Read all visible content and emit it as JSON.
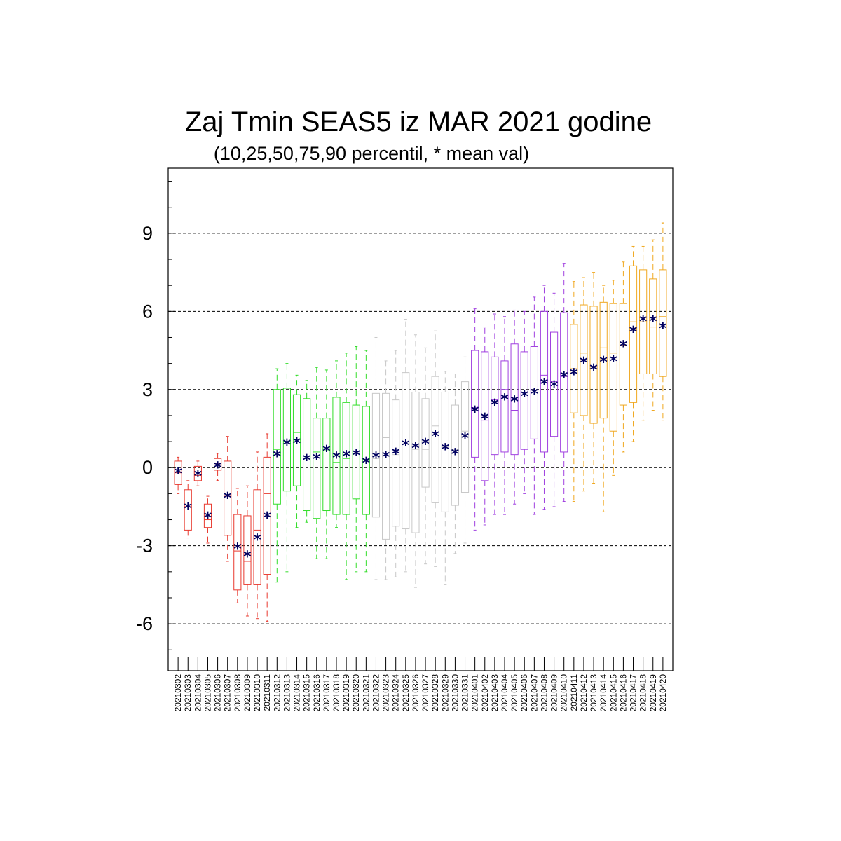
{
  "chart_data": {
    "type": "box",
    "title": "Zaj Tmin SEAS5 iz MAR 2021 godine",
    "subtitle": "(10,25,50,75,90 percentil, * mean val)",
    "xlabel": "",
    "ylabel": "",
    "ylim": [
      -7.8,
      11.5
    ],
    "yticks": [
      -6,
      -3,
      0,
      3,
      6,
      9
    ],
    "grid": "horizontal dashed at major ticks",
    "mean_marker": "*",
    "colors": {
      "march_early": "#e8392e",
      "march_mid": "#33dd2a",
      "march_late": "#c8c8c8",
      "april_early": "#a040e0",
      "april_mid": "#f0a820",
      "mean": "#000060",
      "grid": "#000000"
    },
    "categories": [
      "20210302",
      "20210303",
      "20210304",
      "20210305",
      "20210306",
      "20210307",
      "20210308",
      "20210309",
      "20210310",
      "20210311",
      "20210312",
      "20210313",
      "20210314",
      "20210315",
      "20210316",
      "20210317",
      "20210318",
      "20210319",
      "20210320",
      "20210321",
      "20210322",
      "20210323",
      "20210324",
      "20210325",
      "20210326",
      "20210327",
      "20210328",
      "20210329",
      "20210330",
      "20210331",
      "20210401",
      "20210402",
      "20210403",
      "20210404",
      "20210405",
      "20210406",
      "20210407",
      "20210408",
      "20210409",
      "20210410",
      "20210411",
      "20210412",
      "20210413",
      "20210414",
      "20210415",
      "20210416",
      "20210417",
      "20210418",
      "20210419",
      "20210420"
    ],
    "color_group": [
      "march_early",
      "march_early",
      "march_early",
      "march_early",
      "march_early",
      "march_early",
      "march_early",
      "march_early",
      "march_early",
      "march_early",
      "march_mid",
      "march_mid",
      "march_mid",
      "march_mid",
      "march_mid",
      "march_mid",
      "march_mid",
      "march_mid",
      "march_mid",
      "march_mid",
      "march_late",
      "march_late",
      "march_late",
      "march_late",
      "march_late",
      "march_late",
      "march_late",
      "march_late",
      "march_late",
      "march_late",
      "april_early",
      "april_early",
      "april_early",
      "april_early",
      "april_early",
      "april_early",
      "april_early",
      "april_early",
      "april_early",
      "april_early",
      "april_mid",
      "april_mid",
      "april_mid",
      "april_mid",
      "april_mid",
      "april_mid",
      "april_mid",
      "april_mid",
      "april_mid",
      "april_mid"
    ],
    "p10": [
      -1.0,
      -2.7,
      -0.7,
      -2.9,
      -0.5,
      -3.6,
      -5.2,
      -5.7,
      -5.8,
      -5.9,
      -4.4,
      -4.0,
      -2.3,
      -2.1,
      -3.5,
      -3.5,
      -2.3,
      -4.3,
      -4.0,
      -4.0,
      -4.3,
      -4.3,
      -4.2,
      -4.0,
      -4.6,
      -3.7,
      -3.8,
      -4.5,
      -3.3,
      -2.9,
      -2.4,
      -2.2,
      -1.8,
      -1.8,
      -1.4,
      -1.0,
      -1.8,
      -1.6,
      -1.5,
      -1.3,
      -1.3,
      -0.9,
      -0.6,
      -1.7,
      -0.3,
      0.6,
      1.0,
      1.8,
      2.2,
      1.8
    ],
    "p25": [
      -0.65,
      -2.4,
      -0.5,
      -2.3,
      -0.1,
      -2.6,
      -4.7,
      -4.5,
      -4.5,
      -4.1,
      -1.4,
      -0.9,
      -0.7,
      -1.65,
      -1.95,
      -1.65,
      -1.8,
      -1.8,
      -1.2,
      -1.8,
      -1.9,
      -2.75,
      -2.25,
      -2.35,
      -2.5,
      -0.75,
      -1.35,
      -1.7,
      -1.45,
      -0.95,
      0.4,
      -0.5,
      0.5,
      0.6,
      0.5,
      0.7,
      1.1,
      0.6,
      1.2,
      0.6,
      2.1,
      2.0,
      1.7,
      1.9,
      1.4,
      2.4,
      2.5,
      3.6,
      3.6,
      3.5
    ],
    "median": [
      -0.2,
      -1.5,
      -0.3,
      -2.0,
      0.15,
      -1.1,
      -3.2,
      -3.6,
      -2.4,
      -1.0,
      0.7,
      1.0,
      1.35,
      0.1,
      0.6,
      0.65,
      0.2,
      0.35,
      0.45,
      0.3,
      0.35,
      1.15,
      0.5,
      1.0,
      0.7,
      0.7,
      1.6,
      0.8,
      0.7,
      1.4,
      2.3,
      1.8,
      2.6,
      3.0,
      2.2,
      2.9,
      2.9,
      3.55,
      3.3,
      3.5,
      3.8,
      4.4,
      3.6,
      4.6,
      4.4,
      4.7,
      5.6,
      5.6,
      5.4,
      5.8
    ],
    "p75": [
      0.25,
      -0.85,
      0.05,
      -1.4,
      0.35,
      0.25,
      -1.8,
      -1.85,
      -0.85,
      0.4,
      3.0,
      3.05,
      2.8,
      2.65,
      1.9,
      1.9,
      2.7,
      2.5,
      2.4,
      2.35,
      2.85,
      2.85,
      2.6,
      3.65,
      2.9,
      2.65,
      3.5,
      2.9,
      2.4,
      3.3,
      4.5,
      4.45,
      4.25,
      4.1,
      4.75,
      4.45,
      4.65,
      6.0,
      5.2,
      5.95,
      5.5,
      6.25,
      6.2,
      6.35,
      6.3,
      6.3,
      7.75,
      7.6,
      7.25,
      7.6
    ],
    "p90": [
      0.4,
      -0.5,
      0.25,
      -1.1,
      0.55,
      1.2,
      -0.8,
      -0.7,
      0.6,
      1.3,
      3.8,
      4.0,
      3.55,
      3.35,
      3.85,
      3.75,
      4.1,
      4.4,
      4.65,
      4.5,
      5.0,
      4.1,
      4.5,
      5.7,
      5.1,
      4.6,
      5.25,
      3.7,
      3.6,
      4.25,
      6.1,
      5.4,
      5.9,
      5.8,
      6.05,
      6.0,
      6.55,
      7.0,
      6.7,
      7.85,
      7.15,
      7.3,
      7.5,
      7.0,
      7.2,
      7.9,
      8.5,
      8.5,
      8.75,
      9.4
    ],
    "mean": [
      -0.15,
      -1.5,
      -0.25,
      -1.85,
      0.08,
      -1.1,
      -3.05,
      -3.35,
      -2.7,
      -1.85,
      0.5,
      0.95,
      1.0,
      0.35,
      0.4,
      0.7,
      0.45,
      0.5,
      0.55,
      0.25,
      0.45,
      0.48,
      0.6,
      0.92,
      0.82,
      0.98,
      1.27,
      0.77,
      0.58,
      1.2,
      2.22,
      1.95,
      2.48,
      2.68,
      2.6,
      2.8,
      2.9,
      3.27,
      3.18,
      3.55,
      3.65,
      4.1,
      3.83,
      4.13,
      4.15,
      4.73,
      5.28,
      5.68,
      5.68,
      5.42
    ]
  }
}
